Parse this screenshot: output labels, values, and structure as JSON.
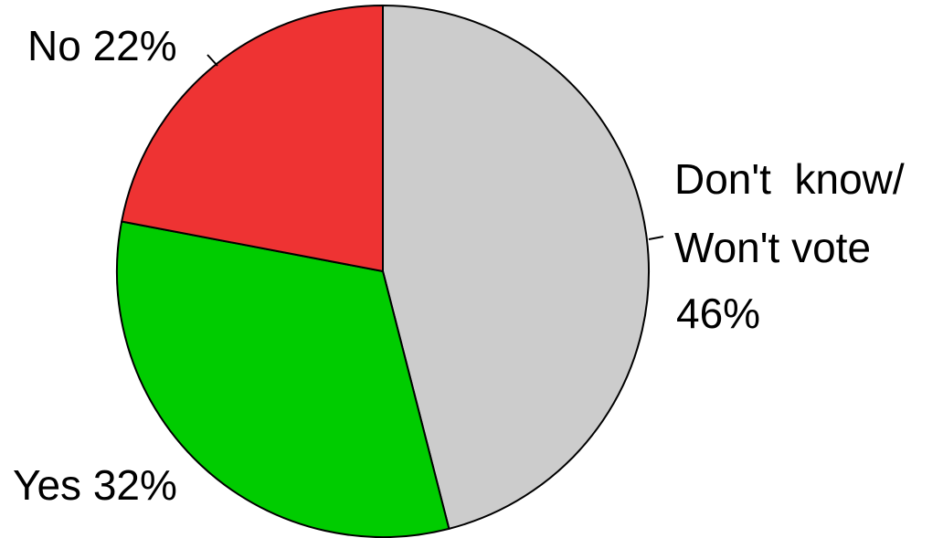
{
  "chart_data": {
    "type": "pie",
    "title": "",
    "slices": [
      {
        "label": "Don't know/ Won't vote",
        "value": 46,
        "value_text": "46%",
        "color": "#cccccc"
      },
      {
        "label": "Yes",
        "value": 32,
        "value_text": "32%",
        "color": "#00cc00"
      },
      {
        "label": "No",
        "value": 22,
        "value_text": "22%",
        "color": "#ee3333"
      }
    ],
    "start_angle": "12 o'clock",
    "direction": "clockwise",
    "labels": {
      "dont_know_line1": "Don't  know/",
      "dont_know_line2": "Won't vote",
      "dont_know_pct": "46%",
      "yes": "Yes 32%",
      "no": "No 22%"
    },
    "legend": "none"
  }
}
